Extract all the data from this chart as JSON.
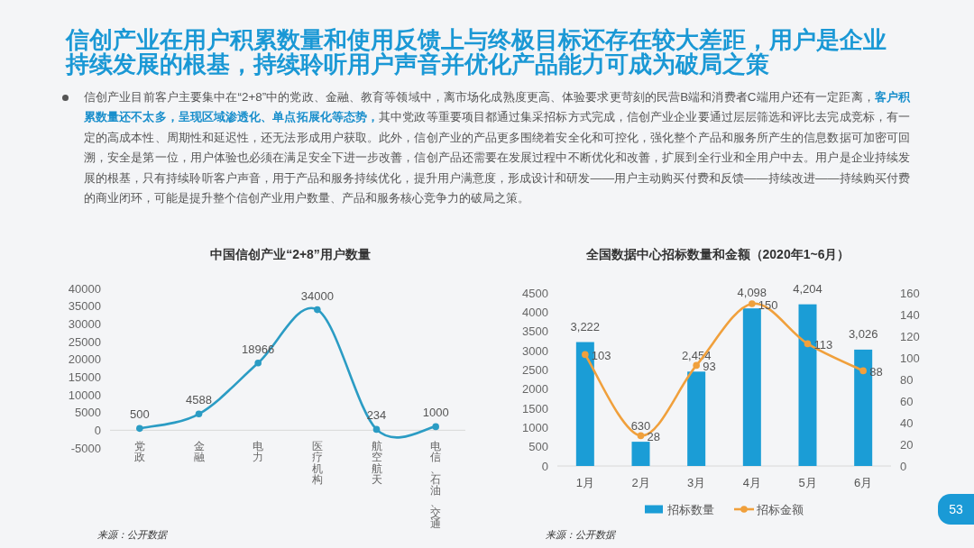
{
  "chart_data": [
    {
      "type": "other",
      "title": "信创产业在用户积累数量和使用反馈上与终极目标还存在较大差距，用户是企业持续发展的根基，持续聆听用户声音并优化产品能力可成为破局之策",
      "annotations": [
        "信创产业目前客户主要集中在“2+8”中的党政、金融、教育等领域中，离市场化成熟度更高、体验要求更苛刻的民营B端和消费者C端用户还有一定距离，**客户积累数量还不太多，呈现区域渗透化、单点拓展化等态势，**其中党政等重要项目都通过集采招标方式完成，信创产业企业要通过层层筛选和评比去完成竞标，有一定的高成本性、周期性和延迟性，还无法形成用户获取。此外，信创产业的产品更多围绕着安全化和可控化，强化整个产品和服务所产生的信息数据可加密可回溯，安全是第一位，用户体验也必须在满足安全下进一步改善，信创产品还需要在发展过程中不断优化和改善，扩展到全行业和全用户中去。用户是企业持续发展的根基，只有持续聆听客户声音，用于产品和服务持续优化，提升用户满意度，形成设计和研发——用户主动购买付费和反馈——持续改进——持续购买付费的商业闭环，可能是提升整个信创产业用户数量、产品和服务核心竞争力的破局之策。",
        "53"
      ]
    },
    {
      "type": "line",
      "title": "中国信创产业“2+8”用户数量",
      "categories": [
        "党政",
        "金融",
        "电力",
        "医疗机构",
        "航空航天",
        "电信、石油、交通"
      ],
      "values": [
        500,
        4588,
        18966,
        34000,
        234,
        1000
      ],
      "color": "#2b9cc4",
      "ylim": [
        -5000,
        40000
      ],
      "yticks": [
        -5000,
        0,
        5000,
        10000,
        15000,
        20000,
        25000,
        30000,
        35000,
        40000
      ],
      "data_labels": true,
      "marker": "circle",
      "annotations": [
        "来源：公开数据"
      ]
    },
    {
      "type": "bar",
      "title": "全国数据中心招标数量和金额（2020年1~6月）",
      "categories": [
        "1月",
        "2月",
        "3月",
        "4月",
        "5月",
        "6月"
      ],
      "series": [
        {
          "name": "招标数量",
          "type": "bar",
          "color": "#1b9dd6",
          "values": [
            3222,
            630,
            2454,
            4098,
            4204,
            3026
          ],
          "value_labels": [
            "3,222",
            "630",
            "2,454",
            "4,098",
            "4,204",
            "3,026"
          ]
        },
        {
          "name": "招标金额",
          "type": "line",
          "axis": "y2",
          "color": "#f0a03c",
          "values": [
            103,
            28,
            93,
            150,
            113,
            88
          ],
          "value_labels": [
            "103",
            "28",
            "93",
            "150",
            "113",
            "88"
          ]
        }
      ],
      "ylim": [
        0,
        4500
      ],
      "yticks": [
        0,
        500,
        1000,
        1500,
        2000,
        2500,
        3000,
        3500,
        4000,
        4500
      ],
      "y2lim": [
        0,
        160
      ],
      "y2ticks": [
        0,
        20,
        40,
        60,
        80,
        100,
        120,
        140,
        160
      ],
      "marker": "circle",
      "legend": "bottom",
      "annotations": [
        "来源：公开数据"
      ]
    }
  ]
}
